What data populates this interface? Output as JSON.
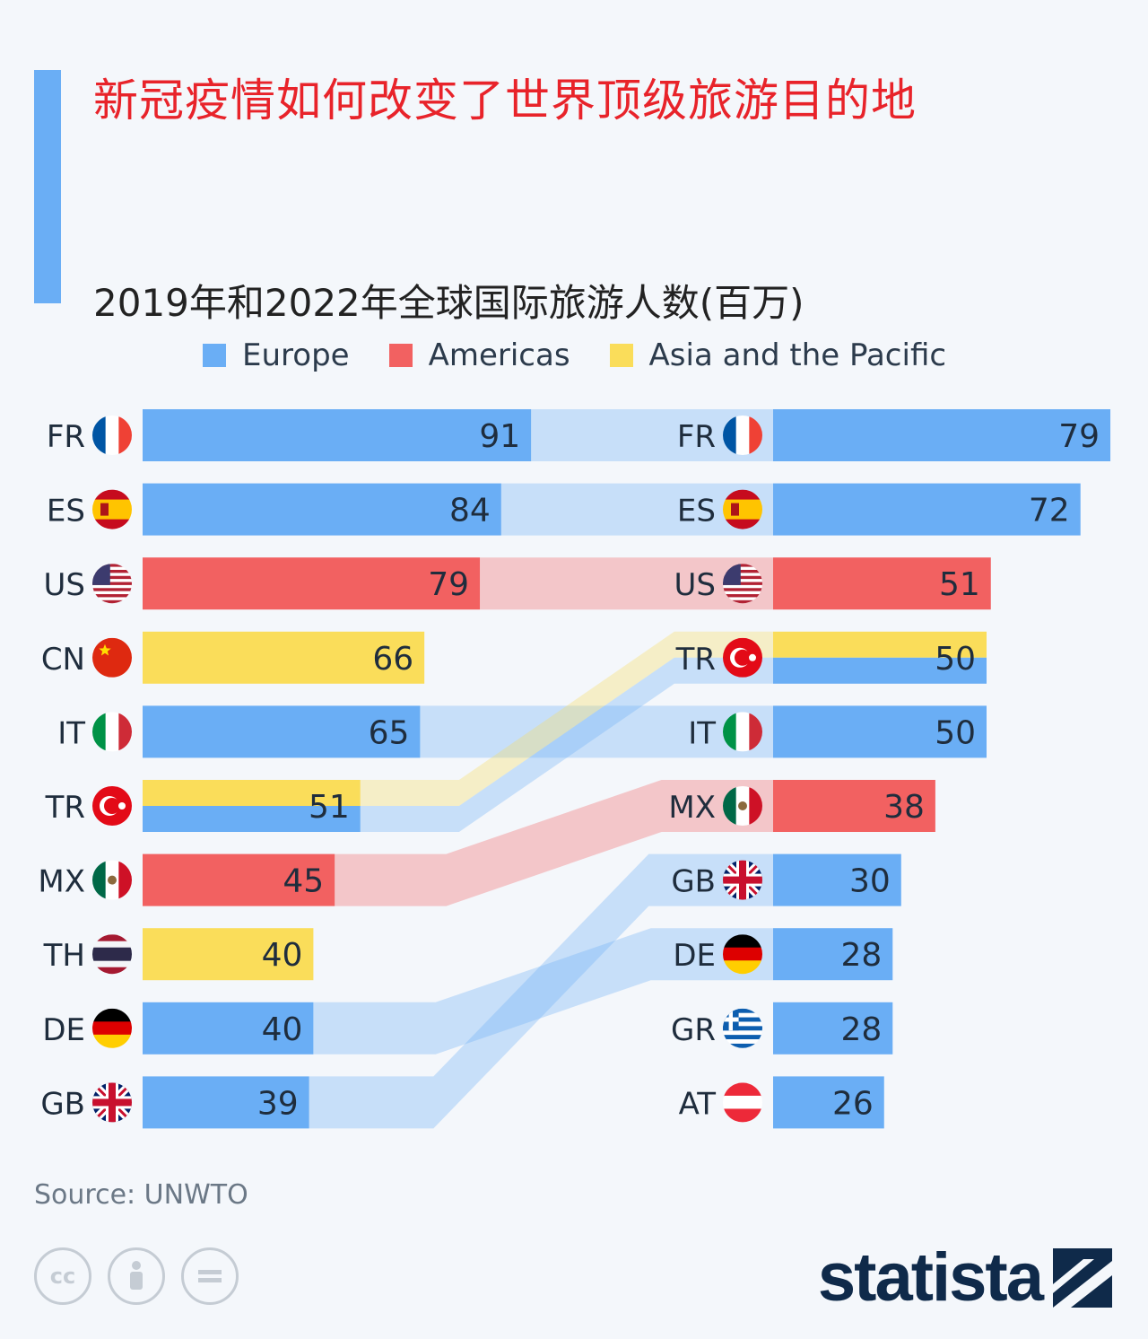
{
  "title": "新冠疫情如何改变了世界顶级旅游目的地",
  "subtitle": "2019年和2022年全球国际旅游人数(百万)",
  "legend": [
    {
      "label": "Europe",
      "color": "#6aaef5"
    },
    {
      "label": "Americas",
      "color": "#f26161"
    },
    {
      "label": "Asia and the Pacific",
      "color": "#fadd5a"
    }
  ],
  "source": "Source: UNWTO",
  "brand": "statista",
  "chart_data": {
    "type": "bar",
    "title": "2019年和2022年全球国际旅游人数(百万)",
    "unit": "百万",
    "legend_position": "top",
    "colors": {
      "Europe": "#6aaef5",
      "Americas": "#f26161",
      "Both": "#fadd5a"
    },
    "panels": [
      {
        "name": "2019",
        "rows": [
          {
            "code": "FR",
            "value": 91,
            "regions": [
              "Europe"
            ]
          },
          {
            "code": "ES",
            "value": 84,
            "regions": [
              "Europe"
            ]
          },
          {
            "code": "US",
            "value": 79,
            "regions": [
              "Americas"
            ]
          },
          {
            "code": "CN",
            "value": 66,
            "regions": [
              "Asia and the Pacific"
            ]
          },
          {
            "code": "IT",
            "value": 65,
            "regions": [
              "Europe"
            ]
          },
          {
            "code": "TR",
            "value": 51,
            "regions": [
              "Asia and the Pacific",
              "Europe"
            ]
          },
          {
            "code": "MX",
            "value": 45,
            "regions": [
              "Americas"
            ]
          },
          {
            "code": "TH",
            "value": 40,
            "regions": [
              "Asia and the Pacific"
            ]
          },
          {
            "code": "DE",
            "value": 40,
            "regions": [
              "Europe"
            ]
          },
          {
            "code": "GB",
            "value": 39,
            "regions": [
              "Europe"
            ]
          }
        ]
      },
      {
        "name": "2022",
        "rows": [
          {
            "code": "FR",
            "value": 79,
            "regions": [
              "Europe"
            ]
          },
          {
            "code": "ES",
            "value": 72,
            "regions": [
              "Europe"
            ]
          },
          {
            "code": "US",
            "value": 51,
            "regions": [
              "Americas"
            ]
          },
          {
            "code": "TR",
            "value": 50,
            "regions": [
              "Asia and the Pacific",
              "Europe"
            ]
          },
          {
            "code": "IT",
            "value": 50,
            "regions": [
              "Europe"
            ]
          },
          {
            "code": "MX",
            "value": 38,
            "regions": [
              "Americas"
            ]
          },
          {
            "code": "GB",
            "value": 30,
            "regions": [
              "Europe"
            ]
          },
          {
            "code": "DE",
            "value": 28,
            "regions": [
              "Europe"
            ]
          },
          {
            "code": "GR",
            "value": 28,
            "regions": [
              "Europe"
            ]
          },
          {
            "code": "AT",
            "value": 26,
            "regions": [
              "Europe"
            ]
          }
        ]
      }
    ]
  }
}
